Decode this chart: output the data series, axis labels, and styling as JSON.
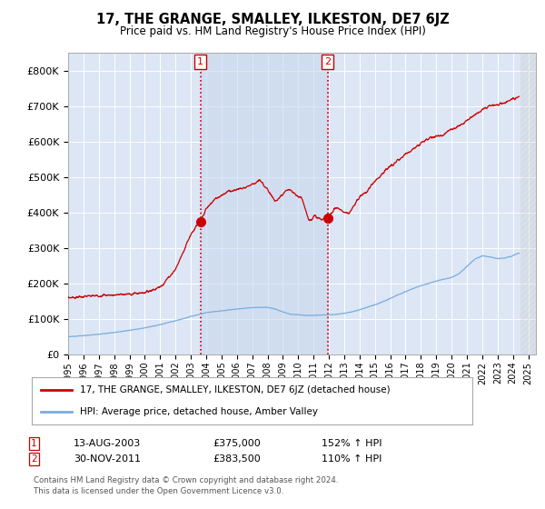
{
  "title": "17, THE GRANGE, SMALLEY, ILKESTON, DE7 6JZ",
  "subtitle": "Price paid vs. HM Land Registry's House Price Index (HPI)",
  "ylim": [
    0,
    850000
  ],
  "yticks": [
    0,
    100000,
    200000,
    300000,
    400000,
    500000,
    600000,
    700000,
    800000
  ],
  "ytick_labels": [
    "£0",
    "£100K",
    "£200K",
    "£300K",
    "£400K",
    "£500K",
    "£600K",
    "£700K",
    "£800K"
  ],
  "background_color": "#ffffff",
  "plot_bg_color": "#dce6f5",
  "grid_color": "#ffffff",
  "sale1_date": 2003.617,
  "sale1_price": 375000,
  "sale1_label": "1",
  "sale1_text": "13-AUG-2003",
  "sale1_price_text": "£375,000",
  "sale1_hpi_text": "152% ↑ HPI",
  "sale2_date": 2011.917,
  "sale2_price": 383500,
  "sale2_label": "2",
  "sale2_text": "30-NOV-2011",
  "sale2_price_text": "£383,500",
  "sale2_hpi_text": "110% ↑ HPI",
  "legend_line1": "17, THE GRANGE, SMALLEY, ILKESTON, DE7 6JZ (detached house)",
  "legend_line2": "HPI: Average price, detached house, Amber Valley",
  "footer1": "Contains HM Land Registry data © Crown copyright and database right 2024.",
  "footer2": "This data is licensed under the Open Government Licence v3.0.",
  "hpi_color": "#7aaddc",
  "price_color": "#cc0000",
  "vline_color": "#cc0000",
  "shade_color": "#c8d8ee",
  "hatch_color": "#bbbbbb",
  "xmin": 1995.0,
  "xmax": 2025.5,
  "data_end": 2024.5
}
